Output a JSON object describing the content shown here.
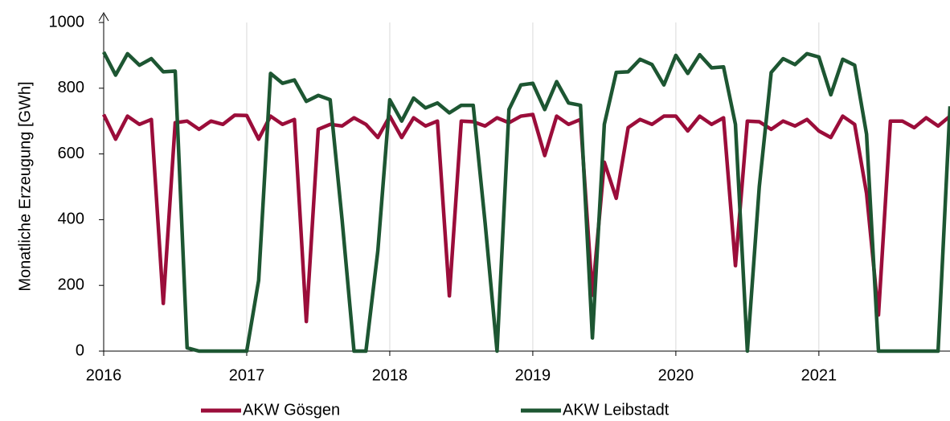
{
  "chart_data": {
    "type": "line",
    "ylabel": "Monatliche Erzeugung [GWh]",
    "categories": [
      "2016",
      null,
      null,
      null,
      null,
      null,
      null,
      null,
      null,
      null,
      null,
      null,
      "2017",
      null,
      null,
      null,
      null,
      null,
      null,
      null,
      null,
      null,
      null,
      null,
      "2018",
      null,
      null,
      null,
      null,
      null,
      null,
      null,
      null,
      null,
      null,
      null,
      "2019",
      null,
      null,
      null,
      null,
      null,
      null,
      null,
      null,
      null,
      null,
      null,
      "2020",
      null,
      null,
      null,
      null,
      null,
      null,
      null,
      null,
      null,
      null,
      null,
      "2021",
      null,
      null,
      null,
      null,
      null,
      null,
      null,
      null,
      null,
      null,
      null
    ],
    "series": [
      {
        "name": "AKW Gösgen",
        "color": "#9b0d3a",
        "values": [
          720,
          645,
          715,
          690,
          705,
          145,
          695,
          700,
          675,
          700,
          690,
          718,
          717,
          645,
          715,
          690,
          705,
          90,
          675,
          690,
          685,
          710,
          690,
          650,
          715,
          650,
          710,
          685,
          700,
          168,
          700,
          698,
          685,
          710,
          695,
          715,
          720,
          595,
          715,
          690,
          705,
          170,
          575,
          465,
          680,
          705,
          690,
          715,
          715,
          670,
          715,
          690,
          710,
          260,
          700,
          698,
          675,
          700,
          685,
          705,
          670,
          650,
          715,
          690,
          480,
          110,
          700,
          700,
          680,
          710,
          685,
          715
        ]
      },
      {
        "name": "AKW Leibstadt",
        "color": "#1d5632",
        "values": [
          910,
          840,
          905,
          870,
          890,
          850,
          852,
          10,
          0,
          0,
          0,
          0,
          0,
          215,
          845,
          815,
          825,
          760,
          778,
          765,
          400,
          0,
          0,
          305,
          765,
          700,
          770,
          740,
          755,
          725,
          748,
          748,
          390,
          0,
          735,
          810,
          815,
          735,
          820,
          755,
          748,
          40,
          690,
          848,
          850,
          888,
          872,
          810,
          900,
          845,
          902,
          862,
          865,
          690,
          0,
          500,
          848,
          890,
          872,
          905,
          895,
          780,
          888,
          870,
          660,
          0,
          0,
          0,
          0,
          0,
          0,
          745
        ]
      }
    ],
    "ylim": [
      0,
      1000
    ],
    "yticks": [
      0,
      200,
      400,
      600,
      800,
      1000
    ],
    "grid": true,
    "legend": "bottom"
  }
}
